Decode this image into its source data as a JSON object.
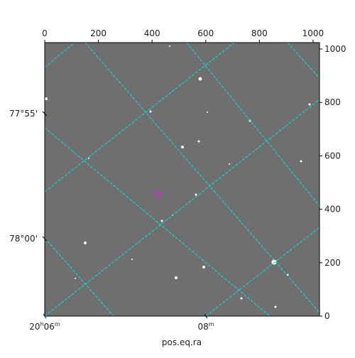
{
  "chart_data": {
    "type": "image",
    "xlabel": "pos.eq.ra",
    "xlim": [
      0,
      1024
    ],
    "xticks": [
      0,
      200,
      400,
      600,
      800,
      1000
    ],
    "ylim": [
      0,
      1024
    ],
    "yticks": [
      0,
      200,
      400,
      600,
      800,
      1000
    ],
    "dec_ticks": [
      "77°55'",
      "78°00'"
    ],
    "ra_ticks": [
      [
        "20",
        "h",
        "06",
        "m"
      ],
      [
        "08",
        "m"
      ]
    ],
    "marker": {
      "x": 420,
      "y": 455,
      "color": "#e020e0"
    },
    "grid_color": "#00e5e5"
  }
}
